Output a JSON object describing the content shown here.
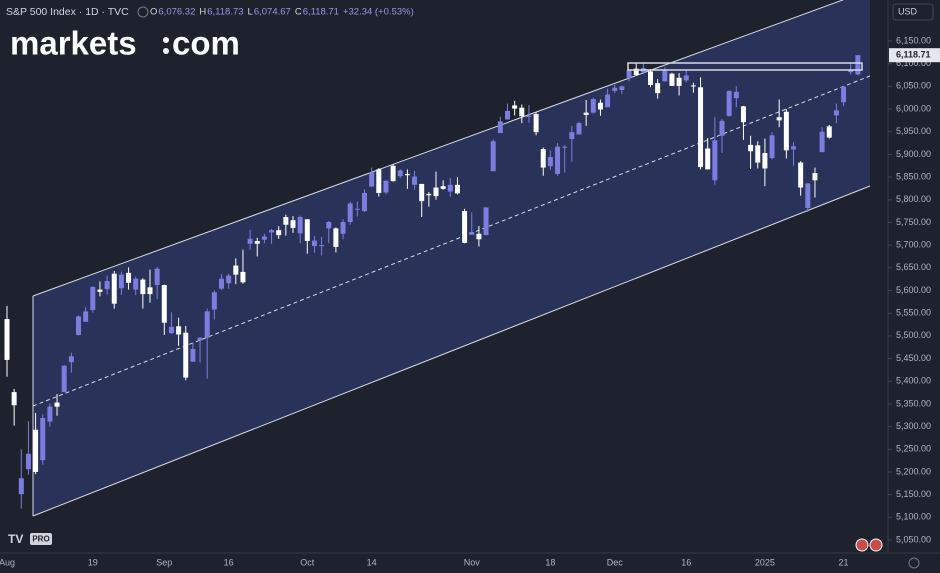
{
  "chart_data": {
    "type": "candlestick",
    "title": "S&P 500 Index · 1D · TVC",
    "ohlc_header": [
      {
        "key": "O",
        "value": "6,076.32"
      },
      {
        "key": "H",
        "value": "6,118.73"
      },
      {
        "key": "L",
        "value": "6,074.67"
      },
      {
        "key": "C",
        "value": "6,118.71"
      }
    ],
    "change": "+32.34 (+0.53%)",
    "logo": {
      "left": "markets",
      "right": "com"
    },
    "currency": "USD",
    "badge": "PRO",
    "last_price": {
      "value": 6118.71,
      "label": "6,118.71"
    },
    "up_color": "#7b7ee0",
    "down_color": "#ffffff",
    "categories": [
      "Aug",
      null,
      null,
      null,
      null,
      null,
      null,
      null,
      null,
      null,
      null,
      null,
      "19",
      null,
      null,
      null,
      null,
      null,
      null,
      null,
      null,
      null,
      "Sep",
      null,
      null,
      null,
      null,
      null,
      null,
      null,
      null,
      "16",
      null,
      null,
      null,
      null,
      null,
      null,
      null,
      null,
      null,
      null,
      "Oct",
      null,
      null,
      null,
      null,
      null,
      null,
      null,
      null,
      "14",
      null,
      null,
      null,
      null,
      null,
      null,
      null,
      null,
      null,
      null,
      null,
      null,
      null,
      "Nov",
      null,
      null,
      null,
      null,
      null,
      null,
      null,
      null,
      null,
      null,
      "18",
      null,
      null,
      null,
      null,
      null,
      null,
      null,
      null,
      "Dec",
      null,
      null,
      null,
      null,
      null,
      null,
      null,
      null,
      null,
      "16",
      null,
      null,
      null,
      null,
      null,
      null,
      null,
      null,
      null,
      null,
      "2025",
      null,
      null,
      null,
      null,
      null,
      null,
      null,
      null,
      null,
      null,
      "21",
      null,
      null
    ],
    "open": [
      5537,
      5376,
      5151,
      5206,
      5293,
      5226,
      5311,
      5353,
      5376,
      5442,
      5502,
      5531,
      5557,
      5602,
      5603,
      5637,
      5605,
      5639,
      5602,
      5624,
      5607,
      5612,
      5612,
      5506,
      5521,
      5507,
      5443,
      5490,
      5496,
      5558,
      5604,
      5616,
      5655,
      5641,
      5703,
      5709,
      5712,
      5728,
      5733,
      5762,
      5755,
      5726,
      5757,
      5698,
      5698,
      5737,
      5737,
      5725,
      5751,
      5778,
      5775,
      5829,
      5867,
      5816,
      5875,
      5852,
      5857,
      5833,
      5835,
      5813,
      5827,
      5830,
      5818,
      5833,
      5775,
      5723,
      5725,
      5722,
      5863,
      5947,
      5977,
      6008,
      6003,
      5985,
      5989,
      5912,
      5874,
      5857,
      5917,
      5934,
      5944,
      5992,
      5992,
      6014,
      6004,
      6040,
      6042,
      6069,
      6089,
      6081,
      6083,
      6057,
      6061,
      6078,
      6069,
      6063,
      6052,
      6048,
      5913,
      5843,
      5941,
      5985,
      6024,
      6006,
      5921,
      5920,
      5903,
      5892,
      5982,
      5994,
      5911,
      5882,
      5782,
      5859,
      5905,
      5962,
      5986,
      6015,
      6081.39,
      6076.32
    ],
    "high": [
      5566,
      5383,
      5250,
      5312,
      5330,
      5327,
      5351,
      5372,
      5436,
      5463,
      5545,
      5564,
      5609,
      5620,
      5633,
      5643,
      5642,
      5651,
      5631,
      5627,
      5646,
      5652,
      5613,
      5552,
      5540,
      5522,
      5485,
      5497,
      5560,
      5600,
      5636,
      5637,
      5671,
      5690,
      5734,
      5716,
      5725,
      5736,
      5742,
      5767,
      5764,
      5765,
      5757,
      5720,
      5718,
      5753,
      5739,
      5757,
      5796,
      5796,
      5823,
      5871,
      5870,
      5843,
      5878,
      5867,
      5867,
      5864,
      5835,
      5817,
      5862,
      5843,
      5848,
      5850,
      5780,
      5772,
      5742,
      5784,
      5933,
      5983,
      6012,
      6018,
      6010,
      6009,
      5993,
      5915,
      5909,
      5925,
      5921,
      5963,
      5972,
      6020,
      6025,
      6021,
      6045,
      6053,
      6052,
      6087,
      6100,
      6100,
      6088,
      6066,
      6092,
      6080,
      6079,
      6085,
      6058,
      6070,
      5936,
      5982,
      5978,
      6041,
      6050,
      6007,
      5941,
      5929,
      5935,
      5949,
      6021,
      6000,
      5927,
      5885,
      5837,
      5871,
      5960,
      5965,
      6012,
      6051,
      6100.81,
      6118.73
    ],
    "low": [
      5410,
      5302,
      5119,
      5194,
      5195,
      5216,
      5300,
      5324,
      5376,
      5419,
      5501,
      5531,
      5551,
      5587,
      5591,
      5560,
      5590,
      5602,
      5590,
      5560,
      5573,
      5581,
      5502,
      5504,
      5478,
      5402,
      5443,
      5441,
      5406,
      5536,
      5601,
      5604,
      5614,
      5615,
      5690,
      5675,
      5704,
      5703,
      5714,
      5721,
      5727,
      5704,
      5681,
      5683,
      5677,
      5704,
      5684,
      5713,
      5745,
      5763,
      5773,
      5829,
      5807,
      5812,
      5840,
      5848,
      5824,
      5822,
      5762,
      5785,
      5800,
      5822,
      5807,
      5812,
      5704,
      5723,
      5697,
      5722,
      5863,
      5947,
      5977,
      5986,
      5969,
      5970,
      5942,
      5853,
      5866,
      5853,
      5860,
      5884,
      5944,
      5963,
      5990,
      5985,
      6004,
      6035,
      6033,
      6061,
      6075,
      6077,
      6048,
      6023,
      6060,
      6051,
      6030,
      6059,
      6036,
      5867,
      5867,
      5832,
      5903,
      5983,
      6004,
      5932,
      5868,
      5869,
      5830,
      5889,
      5960,
      5891,
      5875,
      5809,
      5773,
      5805,
      5905,
      5935,
      5969,
      6006,
      6076.13,
      6074.67
    ],
    "close": [
      5447,
      5347,
      5186,
      5240,
      5200,
      5319,
      5344,
      5344,
      5434,
      5455,
      5543,
      5554,
      5608,
      5597,
      5621,
      5571,
      5635,
      5617,
      5626,
      5592,
      5592,
      5648,
      5529,
      5520,
      5503,
      5408,
      5471,
      5496,
      5554,
      5596,
      5626,
      5633,
      5635,
      5618,
      5714,
      5703,
      5719,
      5733,
      5722,
      5745,
      5738,
      5762,
      5709,
      5710,
      5700,
      5751,
      5696,
      5751,
      5792,
      5780,
      5815,
      5860,
      5815,
      5842,
      5841,
      5865,
      5854,
      5851,
      5797,
      5810,
      5808,
      5824,
      5833,
      5814,
      5705,
      5729,
      5713,
      5783,
      5929,
      5973,
      5996,
      6001,
      5984,
      5985,
      5949,
      5871,
      5894,
      5917,
      5917,
      5949,
      5969,
      5987,
      6022,
      5999,
      6032,
      6047,
      6050,
      6086,
      6075,
      6090,
      6053,
      6035,
      6084,
      6051,
      6051,
      6074,
      6051,
      5872,
      5867,
      5931,
      5974,
      6040,
      6038,
      5971,
      5907,
      5882,
      5869,
      5942,
      5975,
      5909,
      5918,
      5827,
      5836,
      5843,
      5950,
      5937,
      5997,
      6049,
      6086.37,
      6118.71
    ],
    "ylim": [
      5050,
      6150
    ],
    "yticks": [
      {
        "value": 6150,
        "label": "6,150.00"
      },
      {
        "value": 6100,
        "label": "6,100.00"
      },
      {
        "value": 6050,
        "label": "6,050.00"
      },
      {
        "value": 6000,
        "label": "6,000.00"
      },
      {
        "value": 5950,
        "label": "5,950.00"
      },
      {
        "value": 5900,
        "label": "5,900.00"
      },
      {
        "value": 5850,
        "label": "5,850.00"
      },
      {
        "value": 5800,
        "label": "5,800.00"
      },
      {
        "value": 5750,
        "label": "5,750.00"
      },
      {
        "value": 5700,
        "label": "5,700.00"
      },
      {
        "value": 5650,
        "label": "5,650.00"
      },
      {
        "value": 5600,
        "label": "5,600.00"
      },
      {
        "value": 5550,
        "label": "5,550.00"
      },
      {
        "value": 5500,
        "label": "5,500.00"
      },
      {
        "value": 5450,
        "label": "5,450.00"
      },
      {
        "value": 5400,
        "label": "5,400.00"
      },
      {
        "value": 5350,
        "label": "5,350.00"
      },
      {
        "value": 5300,
        "label": "5,300.00"
      },
      {
        "value": 5250,
        "label": "5,250.00"
      },
      {
        "value": 5200,
        "label": "5,200.00"
      },
      {
        "value": 5150,
        "label": "5,150.00"
      },
      {
        "value": 5100,
        "label": "5,100.00"
      },
      {
        "value": 5050,
        "label": "5,050.00"
      }
    ]
  }
}
